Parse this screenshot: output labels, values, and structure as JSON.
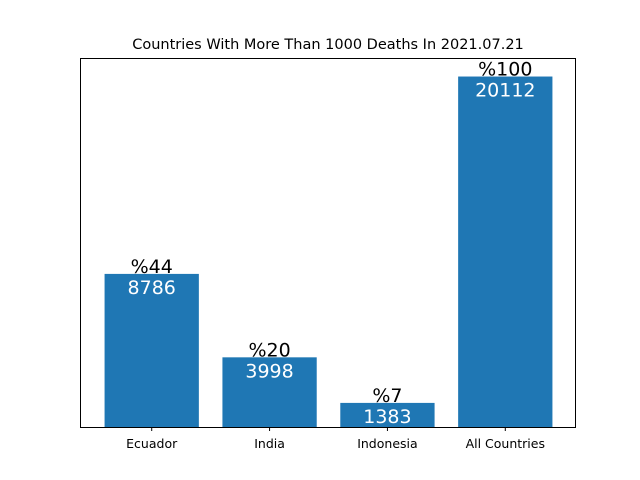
{
  "chart_data": {
    "type": "bar",
    "title": "Countries With More Than 1000 Deaths In 2021.07.21",
    "categories": [
      "Ecuador",
      "India",
      "Indonesia",
      "All Countries"
    ],
    "values": [
      8786,
      3998,
      1383,
      20112
    ],
    "percent_labels": [
      "%44",
      "%20",
      "%7",
      "%100"
    ],
    "value_labels": [
      "8786",
      "3998",
      "1383",
      "20112"
    ],
    "xlabel": "",
    "ylabel": "",
    "ylim": [
      0,
      21118
    ],
    "y_ticks_visible": false,
    "grid": false,
    "bar_color": "#1f77b4"
  }
}
